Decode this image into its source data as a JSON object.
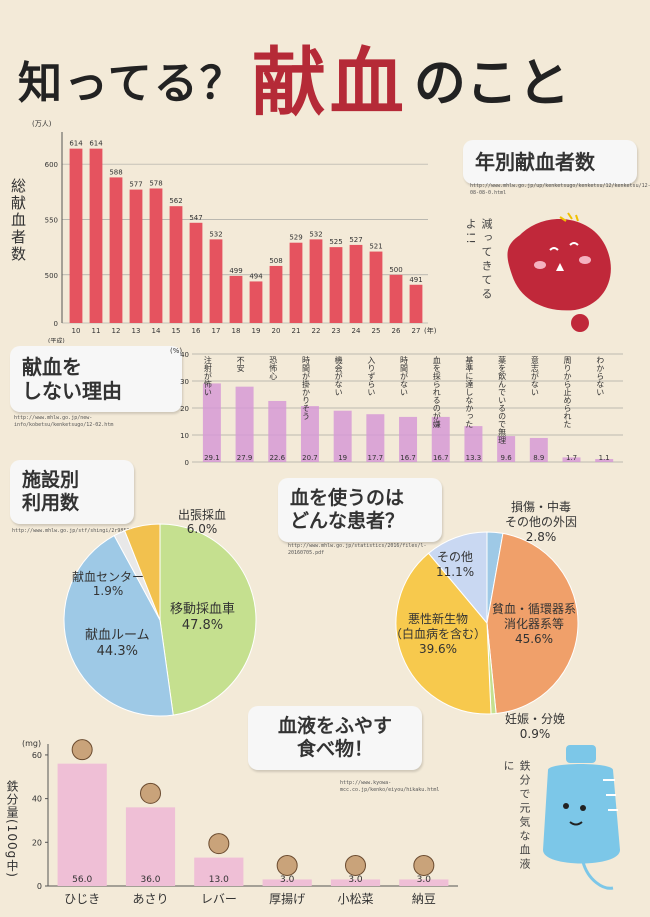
{
  "title": {
    "part1": "知ってる？",
    "part2": "献血",
    "part3": "のこと"
  },
  "donors": {
    "heading": "年別献血者数",
    "url": "http://www.mhlw.go.jp/up/kenketsugo/kenketsu/12/kenketsu/12-08-08-0.html",
    "ylabel": "総献血者数",
    "chart_data": {
      "type": "bar",
      "unit": "(万人)",
      "xunit_start": "(平成)",
      "xunit_end": "(年)",
      "categories": [
        "10",
        "11",
        "12",
        "13",
        "14",
        "15",
        "16",
        "17",
        "18",
        "19",
        "20",
        "21",
        "22",
        "23",
        "24",
        "25",
        "26",
        "27"
      ],
      "values": [
        614,
        614,
        588,
        577,
        578,
        562,
        547,
        532,
        499,
        494,
        508,
        529,
        532,
        525,
        527,
        521,
        500,
        491
      ],
      "ylim": [
        0,
        620
      ],
      "yticks": [
        "0",
        "500",
        "550",
        "600"
      ]
    }
  },
  "drop_text": "減ってきてるよ!!",
  "reasons": {
    "heading1": "献血を",
    "heading2": "しない理由",
    "url": "http://www.mhlw.go.jp/new-info/kobetsu/kenketsugo/12-02.htm",
    "chart_data": {
      "type": "bar",
      "unit": "(%)",
      "yticks": [
        "0",
        "10",
        "20",
        "30",
        "40"
      ],
      "ylim": [
        0,
        40
      ],
      "categories": [
        "注射が怖い",
        "不安",
        "恐怖心",
        "時間が掛かりそう",
        "機会がない",
        "入りずらい",
        "時間がない",
        "血を採られるのが嫌",
        "基準に達しなかった",
        "薬を飲んでいるので無理",
        "意志がない",
        "周りから止められた",
        "わからない"
      ],
      "values": [
        29.1,
        27.9,
        22.6,
        20.7,
        19.0,
        17.7,
        16.7,
        16.7,
        13.3,
        9.6,
        8.9,
        1.7,
        1.1
      ]
    }
  },
  "facility": {
    "heading1": "施設別",
    "heading2": "利用数",
    "url": "http://www.mhlw.go.jp/stf/shingi/2r98520000035zgm.pdf",
    "chart_data": {
      "type": "pie",
      "series": [
        {
          "name": "移動採血車",
          "value": 47.8,
          "color": "#c5e08f"
        },
        {
          "name": "献血ルーム",
          "value": 44.3,
          "color": "#9ec9e6"
        },
        {
          "name": "献血センター",
          "value": 1.9,
          "color": "#e8e8e8"
        },
        {
          "name": "出張採血",
          "value": 6.0,
          "color": "#f2c14e"
        }
      ]
    },
    "labels": {
      "car": "移動採血車",
      "car_val": "47.8%",
      "room": "献血ルーム",
      "room_val": "44.3%",
      "center": "献血センター",
      "center_val": "1.9%",
      "trip": "出張採血",
      "trip_val": "6.0%"
    }
  },
  "patients": {
    "heading1": "血を使うのは",
    "heading2": "どんな患者？",
    "url": "http://www.mhlw.go.jp/statistics/2016/files/l-20160705.pdf",
    "chart_data": {
      "type": "pie",
      "series": [
        {
          "name": "損傷・中毒その他の外因",
          "value": 2.8,
          "color": "#9ec9e6"
        },
        {
          "name": "貧血・循環器系消化器系等",
          "value": 45.6,
          "color": "#f0a06a"
        },
        {
          "name": "妊娠・分娩",
          "value": 0.9,
          "color": "#c5e08f"
        },
        {
          "name": "悪性新生物（白血病を含む）",
          "value": 39.6,
          "color": "#f7c94d"
        },
        {
          "name": "その他",
          "value": 11.1,
          "color": "#c9d8f2"
        }
      ]
    },
    "labels": {
      "injury1": "損傷・中毒",
      "injury2": "その他の外因",
      "injury_val": "2.8%",
      "anemia1": "貧血・循環器系",
      "anemia2": "消化器系等",
      "anemia_val": "45.6%",
      "preg": "妊娠・分娩",
      "preg_val": "0.9%",
      "cancer1": "悪性新生物",
      "cancer2": "（白血病を含む）",
      "cancer_val": "39.6%",
      "other": "その他",
      "other_val": "11.1%"
    }
  },
  "food": {
    "heading1": "血液をふやす",
    "heading2": "食べ物！",
    "url": "http://www.kyowa-mcc.co.jp/kenko/eiyou/hikaku.html",
    "ylabel": "鉄分量(100g中)",
    "chart_data": {
      "type": "bar",
      "unit": "(mg)",
      "yticks": [
        "0",
        "20",
        "40",
        "60"
      ],
      "ylim": [
        0,
        65
      ],
      "categories": [
        "ひじき",
        "あさり",
        "レバー",
        "厚揚げ",
        "小松菜",
        "納豆"
      ],
      "values": [
        56.0,
        36.0,
        13.0,
        3.0,
        3.0,
        3.0
      ],
      "value_labels": [
        "56.0",
        "36.0",
        "13.0",
        "3.0",
        "3.0",
        "3.0"
      ]
    }
  },
  "bag_text": "鉄分で元気な血液に",
  "colors": {
    "red_bar": "#e5535f",
    "pink_bar": "#d69ad6",
    "food_bar": "#efbfd6",
    "title_red": "#b52a37"
  }
}
